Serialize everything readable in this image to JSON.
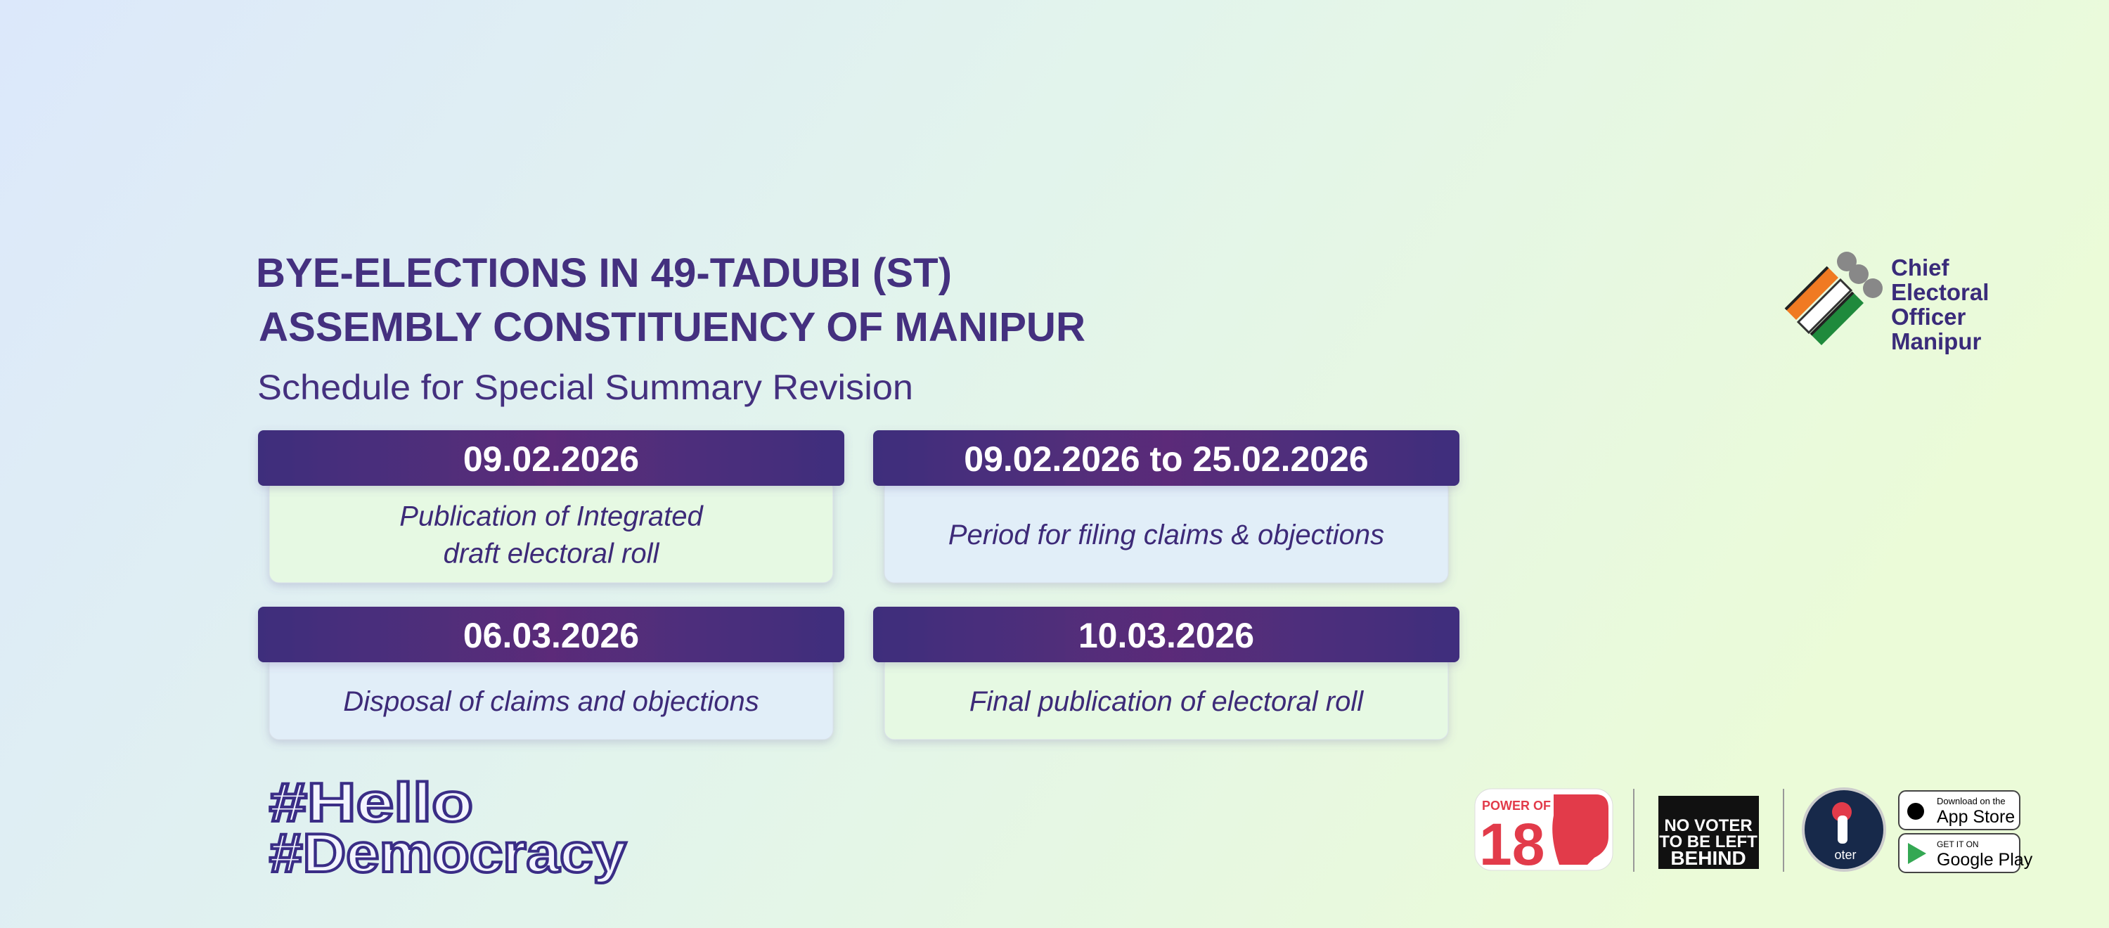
{
  "header": {
    "title_lines": [
      "BYE-ELECTIONS IN 49-TADUBI (ST)",
      "ASSEMBLY CONSTITUENCY OF MANIPUR"
    ],
    "subtitle": "Schedule for Special Summary Revision"
  },
  "cards": [
    {
      "date": "09.02.2026",
      "description": [
        "Publication of Integrated",
        "draft electoral roll"
      ]
    },
    {
      "date": "09.02.2026 to 25.02.2026",
      "description": [
        "Period for filing claims & objections"
      ]
    },
    {
      "date": "06.03.2026",
      "description": [
        "Disposal of claims and objections"
      ]
    },
    {
      "date": "10.03.2026",
      "description": [
        "Final publication of electoral roll"
      ]
    }
  ],
  "hashtag": [
    "#Hello",
    "#Democracy"
  ],
  "logo": {
    "lines": [
      "Chief",
      "Electoral",
      "Officer",
      "Manipur"
    ]
  },
  "badges": {
    "power": [
      "POWER OF",
      "18"
    ],
    "no_voter": [
      "NO VOTER",
      "TO BE LEFT",
      "BEHIND"
    ],
    "voter_app": "oter",
    "app_store": [
      "Download on the",
      "App Store"
    ],
    "google_play": [
      "GET IT ON",
      "Google Play"
    ]
  }
}
